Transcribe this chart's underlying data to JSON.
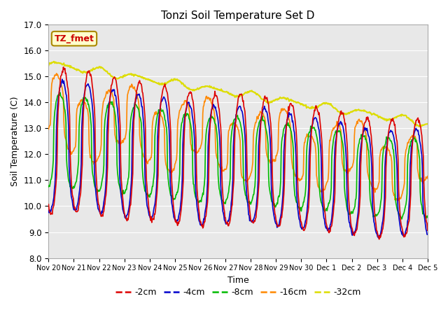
{
  "title": "Tonzi Soil Temperature Set D",
  "xlabel": "Time",
  "ylabel": "Soil Temperature (C)",
  "ylim": [
    8.0,
    17.0
  ],
  "yticks": [
    8.0,
    9.0,
    10.0,
    11.0,
    12.0,
    13.0,
    14.0,
    15.0,
    16.0,
    17.0
  ],
  "colors": {
    "-2cm": "#dd0000",
    "-4cm": "#0000cc",
    "-8cm": "#00bb00",
    "-16cm": "#ff8800",
    "-32cm": "#dddd00"
  },
  "plot_bg_color": "#e8e8e8",
  "grid_color": "#ffffff",
  "xtick_labels": [
    "Nov 20",
    "Nov 21",
    "Nov 22",
    "Nov 23",
    "Nov 24",
    "Nov 25",
    "Nov 26",
    "Nov 27",
    "Nov 28",
    "Nov 29",
    "Nov 30",
    "Dec 1",
    "Dec 2",
    "Dec 3",
    "Dec 4",
    "Dec 5"
  ]
}
